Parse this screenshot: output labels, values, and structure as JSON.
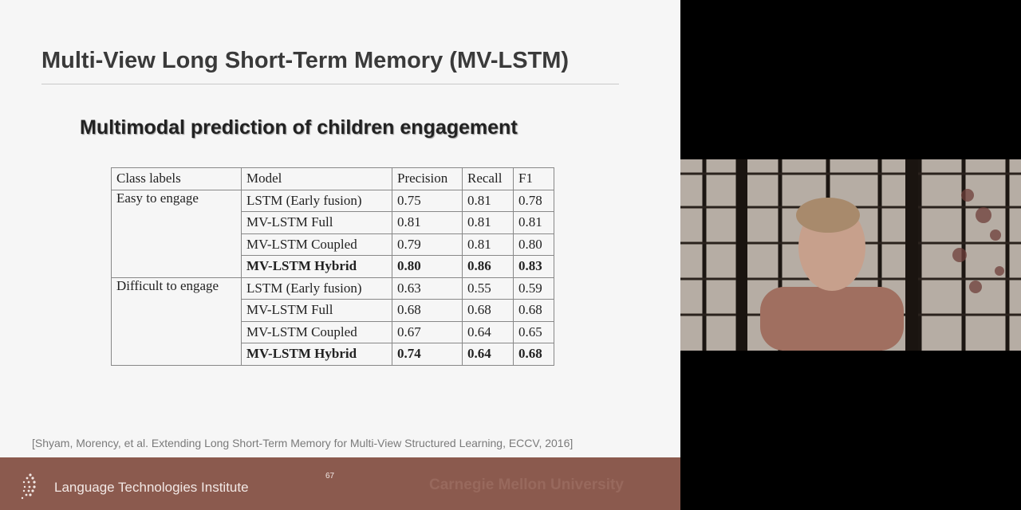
{
  "slide": {
    "title": "Multi-View Long Short-Term Memory (MV-LSTM)",
    "subtitle": "Multimodal prediction of children engagement",
    "table": {
      "headers": [
        "Class labels",
        "Model",
        "Precision",
        "Recall",
        "F1"
      ],
      "groups": [
        {
          "class_label": "Easy to engage",
          "rows": [
            {
              "model": "LSTM (Early fusion)",
              "precision": "0.75",
              "recall": "0.81",
              "f1": "0.78"
            },
            {
              "model": "MV-LSTM Full",
              "precision": "0.81",
              "recall": "0.81",
              "f1": "0.81"
            },
            {
              "model": "MV-LSTM Coupled",
              "precision": "0.79",
              "recall": "0.81",
              "f1": "0.80"
            },
            {
              "model": "MV-LSTM Hybrid",
              "precision": "0.80",
              "recall": "0.86",
              "f1": "0.83"
            }
          ]
        },
        {
          "class_label": "Difficult to engage",
          "rows": [
            {
              "model": "LSTM (Early fusion)",
              "precision": "0.63",
              "recall": "0.55",
              "f1": "0.59"
            },
            {
              "model": "MV-LSTM Full",
              "precision": "0.68",
              "recall": "0.68",
              "f1": "0.68"
            },
            {
              "model": "MV-LSTM Coupled",
              "precision": "0.67",
              "recall": "0.64",
              "f1": "0.65"
            },
            {
              "model": "MV-LSTM Hybrid",
              "precision": "0.74",
              "recall": "0.64",
              "f1": "0.68"
            }
          ]
        }
      ]
    },
    "citation": "[Shyam, Morency, et al. Extending Long Short-Term Memory for Multi-View Structured Learning, ECCV, 2016]",
    "footer": {
      "institute": "Language Technologies Institute",
      "page_number": "67",
      "university": "Carnegie Mellon University"
    }
  },
  "colors": {
    "footer_bg": "#8b5a4e",
    "slide_bg": "#f6f6f6",
    "side_bg": "#000000"
  }
}
